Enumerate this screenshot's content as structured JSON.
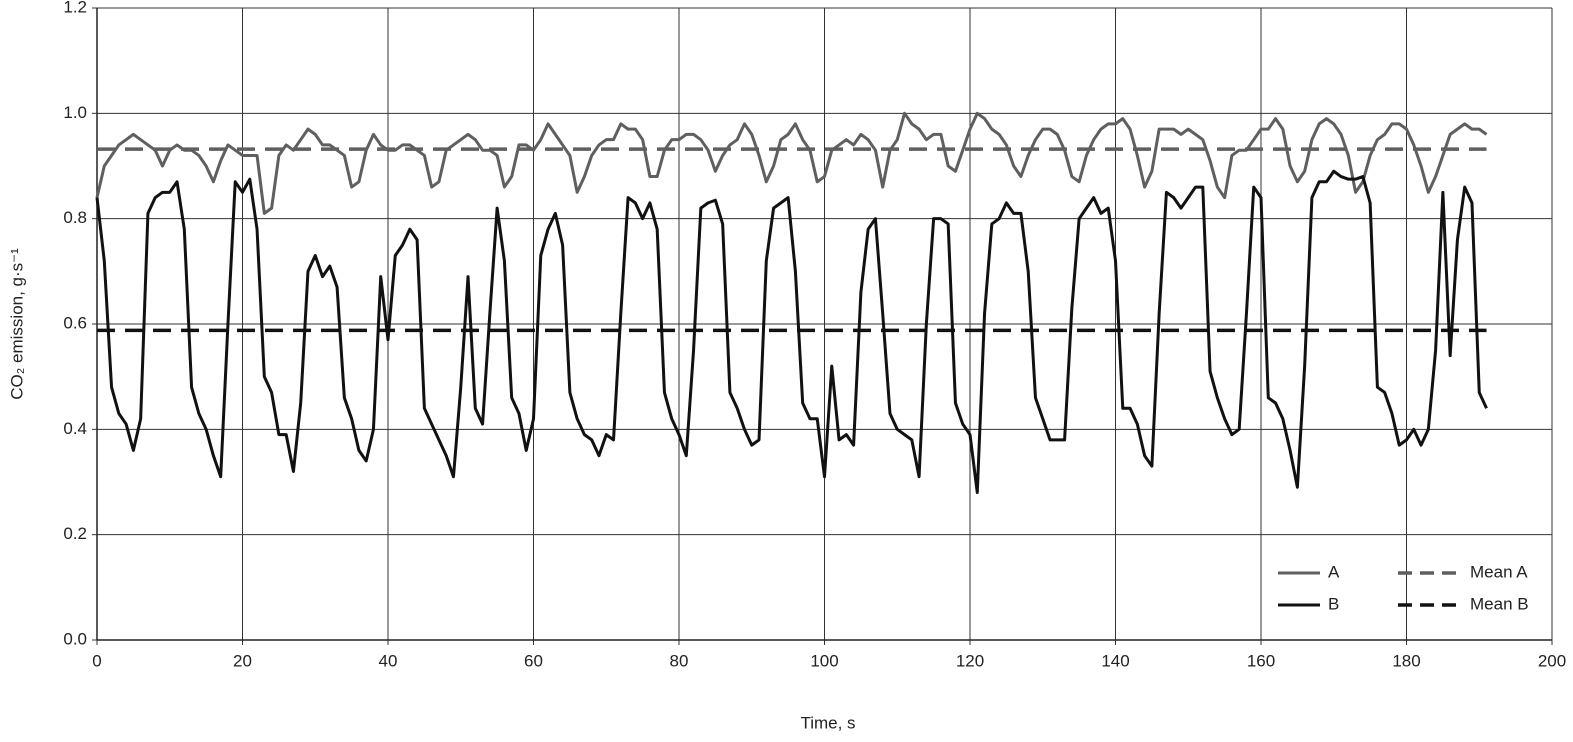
{
  "chart_data": {
    "type": "line",
    "x_label": "Time, s",
    "y_label": "CO₂ emission, g·s⁻¹",
    "x": [
      0,
      1,
      2,
      3,
      4,
      5,
      6,
      7,
      8,
      9,
      10,
      11,
      12,
      13,
      14,
      15,
      16,
      17,
      18,
      19,
      20,
      21,
      22,
      23,
      24,
      25,
      26,
      27,
      28,
      29,
      30,
      31,
      32,
      33,
      34,
      35,
      36,
      37,
      38,
      39,
      40,
      41,
      42,
      43,
      44,
      45,
      46,
      47,
      48,
      49,
      50,
      51,
      52,
      53,
      54,
      55,
      56,
      57,
      58,
      59,
      60,
      61,
      62,
      63,
      64,
      65,
      66,
      67,
      68,
      69,
      70,
      71,
      72,
      73,
      74,
      75,
      76,
      77,
      78,
      79,
      80,
      81,
      82,
      83,
      84,
      85,
      86,
      87,
      88,
      89,
      90,
      91,
      92,
      93,
      94,
      95,
      96,
      97,
      98,
      99,
      100,
      101,
      102,
      103,
      104,
      105,
      106,
      107,
      108,
      109,
      110,
      111,
      112,
      113,
      114,
      115,
      116,
      117,
      118,
      119,
      120,
      121,
      122,
      123,
      124,
      125,
      126,
      127,
      128,
      129,
      130,
      131,
      132,
      133,
      134,
      135,
      136,
      137,
      138,
      139,
      140,
      141,
      142,
      143,
      144,
      145,
      146,
      147,
      148,
      149,
      150,
      151,
      152,
      153,
      154,
      155,
      156,
      157,
      158,
      159,
      160,
      161,
      162,
      163,
      164,
      165,
      166,
      167,
      168,
      169,
      170,
      171,
      172,
      173,
      174,
      175,
      176,
      177,
      178,
      179,
      180,
      181,
      182,
      183,
      184,
      185,
      186,
      187,
      188,
      189,
      190,
      191
    ],
    "series": [
      {
        "name": "A",
        "color": "#5f5f5f",
        "values": [
          0.84,
          0.9,
          0.92,
          0.94,
          0.95,
          0.96,
          0.95,
          0.94,
          0.93,
          0.9,
          0.93,
          0.94,
          0.93,
          0.93,
          0.92,
          0.9,
          0.87,
          0.91,
          0.94,
          0.93,
          0.92,
          0.92,
          0.92,
          0.81,
          0.82,
          0.92,
          0.94,
          0.93,
          0.95,
          0.97,
          0.96,
          0.94,
          0.94,
          0.93,
          0.92,
          0.86,
          0.87,
          0.93,
          0.96,
          0.94,
          0.93,
          0.93,
          0.94,
          0.94,
          0.93,
          0.92,
          0.86,
          0.87,
          0.93,
          0.94,
          0.95,
          0.96,
          0.95,
          0.93,
          0.93,
          0.92,
          0.86,
          0.88,
          0.94,
          0.94,
          0.93,
          0.95,
          0.98,
          0.96,
          0.94,
          0.92,
          0.85,
          0.88,
          0.92,
          0.94,
          0.95,
          0.95,
          0.98,
          0.97,
          0.97,
          0.95,
          0.88,
          0.88,
          0.93,
          0.95,
          0.95,
          0.96,
          0.96,
          0.95,
          0.93,
          0.89,
          0.92,
          0.94,
          0.95,
          0.98,
          0.96,
          0.92,
          0.87,
          0.9,
          0.95,
          0.96,
          0.98,
          0.95,
          0.93,
          0.87,
          0.88,
          0.93,
          0.94,
          0.95,
          0.94,
          0.96,
          0.95,
          0.93,
          0.86,
          0.93,
          0.95,
          1.0,
          0.98,
          0.97,
          0.95,
          0.96,
          0.96,
          0.9,
          0.89,
          0.93,
          0.97,
          1.0,
          0.99,
          0.97,
          0.96,
          0.94,
          0.9,
          0.88,
          0.92,
          0.95,
          0.97,
          0.97,
          0.96,
          0.93,
          0.88,
          0.87,
          0.92,
          0.95,
          0.97,
          0.98,
          0.98,
          0.99,
          0.97,
          0.92,
          0.86,
          0.89,
          0.97,
          0.97,
          0.97,
          0.96,
          0.97,
          0.96,
          0.95,
          0.91,
          0.86,
          0.84,
          0.92,
          0.93,
          0.93,
          0.95,
          0.97,
          0.97,
          0.99,
          0.97,
          0.9,
          0.87,
          0.89,
          0.95,
          0.98,
          0.99,
          0.98,
          0.96,
          0.92,
          0.85,
          0.87,
          0.92,
          0.95,
          0.96,
          0.98,
          0.98,
          0.97,
          0.94,
          0.9,
          0.85,
          0.88,
          0.92,
          0.96,
          0.97,
          0.98,
          0.97,
          0.97,
          0.96
        ]
      },
      {
        "name": "B",
        "color": "#111111",
        "values": [
          0.84,
          0.72,
          0.48,
          0.43,
          0.41,
          0.36,
          0.42,
          0.81,
          0.84,
          0.85,
          0.85,
          0.87,
          0.78,
          0.48,
          0.43,
          0.4,
          0.35,
          0.31,
          0.6,
          0.87,
          0.85,
          0.875,
          0.78,
          0.5,
          0.47,
          0.39,
          0.39,
          0.32,
          0.45,
          0.7,
          0.73,
          0.69,
          0.71,
          0.67,
          0.46,
          0.42,
          0.36,
          0.34,
          0.4,
          0.69,
          0.57,
          0.73,
          0.75,
          0.78,
          0.76,
          0.44,
          0.41,
          0.38,
          0.35,
          0.31,
          0.48,
          0.69,
          0.44,
          0.41,
          0.62,
          0.82,
          0.72,
          0.46,
          0.43,
          0.36,
          0.42,
          0.73,
          0.78,
          0.81,
          0.75,
          0.47,
          0.42,
          0.39,
          0.38,
          0.35,
          0.39,
          0.38,
          0.62,
          0.84,
          0.83,
          0.8,
          0.83,
          0.78,
          0.47,
          0.42,
          0.39,
          0.35,
          0.55,
          0.82,
          0.83,
          0.835,
          0.79,
          0.47,
          0.44,
          0.4,
          0.37,
          0.38,
          0.72,
          0.82,
          0.83,
          0.84,
          0.7,
          0.45,
          0.42,
          0.42,
          0.31,
          0.52,
          0.38,
          0.39,
          0.37,
          0.66,
          0.78,
          0.8,
          0.62,
          0.43,
          0.4,
          0.39,
          0.38,
          0.31,
          0.6,
          0.8,
          0.8,
          0.79,
          0.45,
          0.41,
          0.39,
          0.28,
          0.62,
          0.79,
          0.8,
          0.83,
          0.81,
          0.81,
          0.7,
          0.46,
          0.42,
          0.38,
          0.38,
          0.38,
          0.63,
          0.8,
          0.82,
          0.84,
          0.81,
          0.82,
          0.72,
          0.44,
          0.44,
          0.41,
          0.35,
          0.33,
          0.62,
          0.85,
          0.84,
          0.82,
          0.84,
          0.86,
          0.86,
          0.51,
          0.46,
          0.42,
          0.39,
          0.4,
          0.62,
          0.86,
          0.84,
          0.46,
          0.45,
          0.42,
          0.36,
          0.29,
          0.52,
          0.84,
          0.87,
          0.87,
          0.89,
          0.88,
          0.875,
          0.875,
          0.88,
          0.83,
          0.48,
          0.47,
          0.43,
          0.37,
          0.38,
          0.4,
          0.37,
          0.4,
          0.55,
          0.85,
          0.54,
          0.76,
          0.86,
          0.83,
          0.47,
          0.44
        ]
      }
    ],
    "means": [
      {
        "name": "Mean A",
        "color": "#5f5f5f",
        "value": 0.932
      },
      {
        "name": "Mean B",
        "color": "#111111",
        "value": 0.588
      }
    ],
    "xlim": [
      0,
      200
    ],
    "xticks": [
      0,
      20,
      40,
      60,
      80,
      100,
      120,
      140,
      160,
      180,
      200
    ],
    "ylim": [
      0,
      1.2
    ],
    "yticks": [
      {
        "value": 0,
        "label": "0.0"
      },
      {
        "value": 0.2,
        "label": "0.2"
      },
      {
        "value": 0.4,
        "label": "0.4"
      },
      {
        "value": 0.6,
        "label": "0.6"
      },
      {
        "value": 0.8,
        "label": "0.8"
      },
      {
        "value": 1,
        "label": "1.0"
      },
      {
        "value": 1.2,
        "label": "1.2"
      }
    ],
    "grid": true,
    "legend": "lower right"
  }
}
